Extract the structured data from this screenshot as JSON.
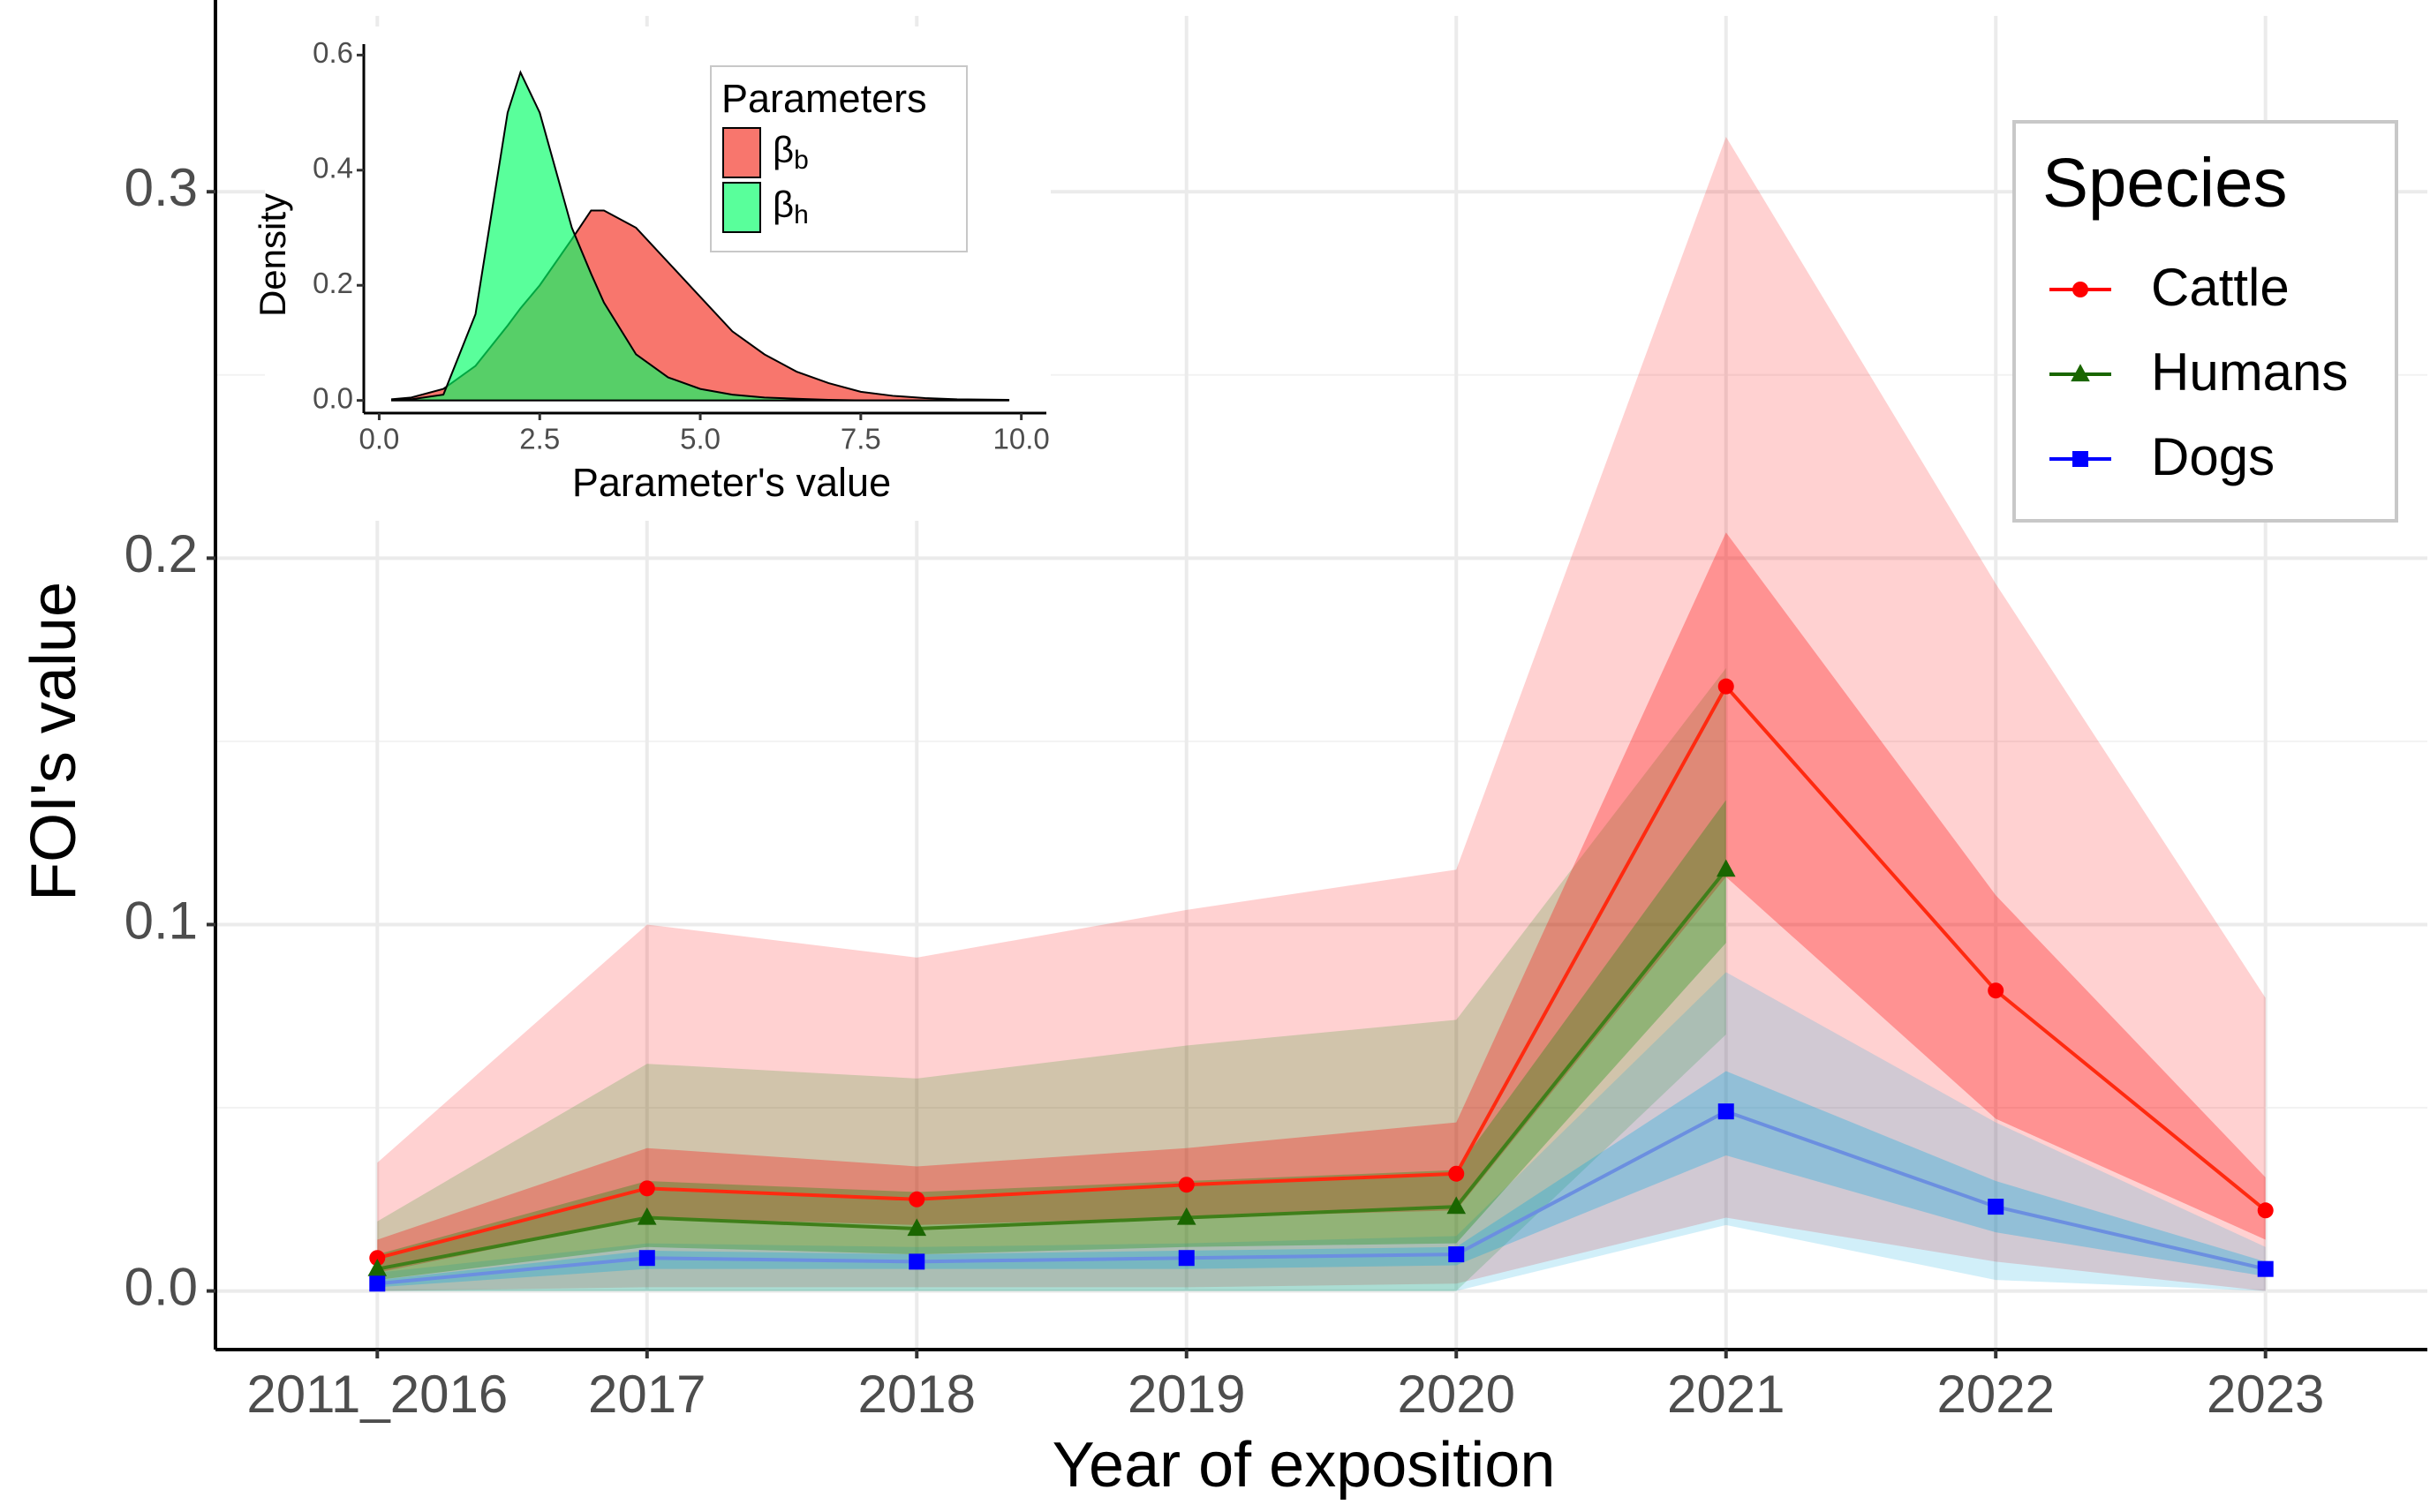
{
  "chart_data": [
    {
      "type": "ribbon-line",
      "xlabel": "Year of exposition",
      "ylabel": "FOI's value",
      "categories": [
        "2011_2016",
        "2017",
        "2018",
        "2019",
        "2020",
        "2021",
        "2022",
        "2023"
      ],
      "ylim": [
        -0.016,
        0.348
      ],
      "yticks": [
        {
          "value": 0,
          "label": "0.0"
        },
        0.1,
        0.2,
        0.3
      ],
      "grid": true,
      "legend_title": "Species",
      "legend_position": "top-right",
      "series": [
        {
          "name": "Cattle",
          "color": "#ff0000",
          "line_color": "#ff2a10",
          "band_color": "#ff0000",
          "marker": "circle",
          "values": [
            0.009,
            0.028,
            0.025,
            0.029,
            0.032,
            0.165,
            0.082,
            0.022
          ],
          "lower50": [
            0.005,
            0.02,
            0.018,
            0.02,
            0.022,
            0.113,
            0.047,
            0.014
          ],
          "upper50": [
            0.014,
            0.039,
            0.034,
            0.039,
            0.046,
            0.207,
            0.108,
            0.031
          ],
          "lower95": [
            0.0,
            0.001,
            0.001,
            0.001,
            0.002,
            0.02,
            0.008,
            0.0
          ],
          "upper95": [
            0.035,
            0.1,
            0.091,
            0.104,
            0.115,
            0.315,
            0.193,
            0.08
          ]
        },
        {
          "name": "Humans",
          "color": "#1a6600",
          "line_color": "#3f7f1a",
          "band_color": "#008c00",
          "marker": "triangle",
          "values": [
            0.006,
            0.02,
            0.017,
            0.02,
            0.023,
            0.115,
            null,
            null
          ],
          "lower50": [
            0.003,
            0.012,
            0.01,
            0.012,
            0.013,
            0.095,
            null,
            null
          ],
          "upper50": [
            0.01,
            0.03,
            0.027,
            0.03,
            0.033,
            0.134,
            null,
            null
          ],
          "lower95": [
            0.0,
            0.0,
            0.0,
            0.0,
            0.0,
            0.07,
            null,
            null
          ],
          "upper95": [
            0.019,
            0.062,
            0.058,
            0.067,
            0.074,
            0.17,
            null,
            null
          ]
        },
        {
          "name": "Dogs",
          "color": "#0000ff",
          "line_color": "#6b8fe0",
          "band_color": "#00a8e0",
          "marker": "square",
          "values": [
            0.002,
            0.009,
            0.008,
            0.009,
            0.01,
            0.049,
            0.023,
            0.006
          ],
          "lower50": [
            0.001,
            0.006,
            0.006,
            0.006,
            0.007,
            0.037,
            0.016,
            0.004
          ],
          "upper50": [
            0.003,
            0.011,
            0.01,
            0.011,
            0.012,
            0.06,
            0.03,
            0.008
          ],
          "lower95": [
            0.0,
            0.0,
            0.0,
            0.0,
            0.0,
            0.018,
            0.003,
            0.0
          ],
          "upper95": [
            0.005,
            0.013,
            0.012,
            0.013,
            0.015,
            0.087,
            0.046,
            0.012
          ]
        }
      ]
    },
    {
      "type": "density",
      "xlabel": "Parameter's value",
      "ylabel": "Density",
      "x": [
        0.2,
        0.5,
        1,
        1.5,
        2,
        2.2,
        2.5,
        3,
        3.3,
        3.5,
        4,
        4.5,
        5,
        5.5,
        6,
        6.5,
        7,
        7.5,
        8,
        8.5,
        9,
        9.8
      ],
      "xlim": [
        -0.24,
        10.39
      ],
      "ylim": [
        -0.022,
        0.619
      ],
      "xticks": [
        {
          "value": 0,
          "label": "0.0"
        },
        2.5,
        {
          "value": 5,
          "label": "5.0"
        },
        7.5,
        {
          "value": 10,
          "label": "10.0"
        }
      ],
      "yticks": [
        {
          "value": 0,
          "label": "0.0"
        },
        0.2,
        0.4,
        0.6
      ],
      "legend_title": "Parameters",
      "legend_position": "top-right",
      "series": [
        {
          "name": "βb",
          "color": "#f8766d",
          "values": [
            0.002,
            0.005,
            0.02,
            0.06,
            0.13,
            0.16,
            0.2,
            0.28,
            0.33,
            0.33,
            0.3,
            0.24,
            0.18,
            0.12,
            0.08,
            0.05,
            0.03,
            0.015,
            0.008,
            0.004,
            0.002,
            0.001
          ]
        },
        {
          "name": "βh",
          "color": "#00ff66",
          "values": [
            0.001,
            0.002,
            0.01,
            0.15,
            0.5,
            0.57,
            0.5,
            0.3,
            0.22,
            0.17,
            0.08,
            0.04,
            0.02,
            0.01,
            0.005,
            0.003,
            0.001,
            0,
            0,
            0,
            0,
            0
          ]
        }
      ]
    }
  ]
}
